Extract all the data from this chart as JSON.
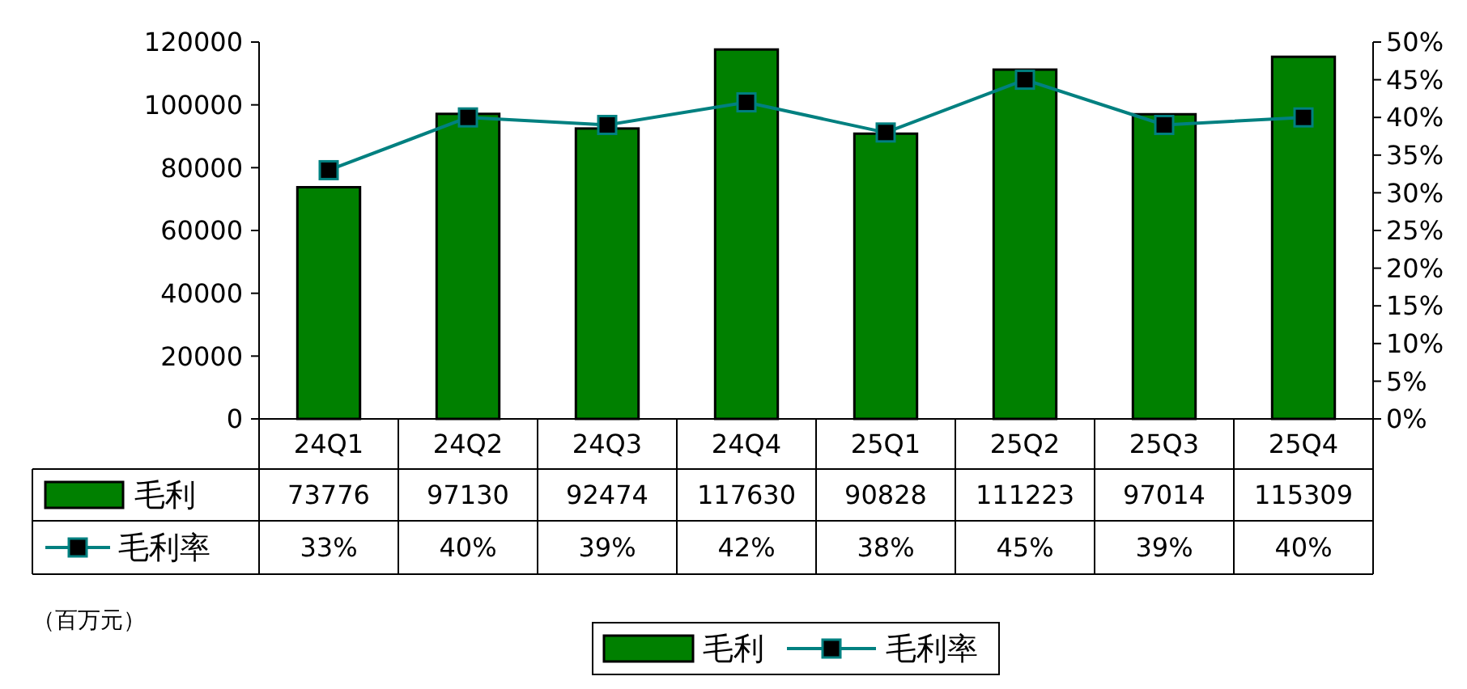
{
  "chart_data": {
    "type": "bar",
    "categories": [
      "24Q1",
      "24Q2",
      "24Q3",
      "24Q4",
      "25Q1",
      "25Q2",
      "25Q3",
      "25Q4"
    ],
    "series": [
      {
        "name": "毛利",
        "color": "#008000",
        "values": [
          73776,
          97130,
          92474,
          117630,
          90828,
          111223,
          97014,
          115309
        ]
      },
      {
        "name": "毛利率",
        "type": "line",
        "axis": "y2",
        "color": "#008080",
        "values": [
          33,
          40,
          39,
          42,
          38,
          45,
          39,
          40
        ]
      }
    ],
    "ylim": [
      0,
      120000
    ],
    "yticks": [
      0,
      20000,
      40000,
      60000,
      80000,
      100000,
      120000
    ],
    "y2lim": [
      0,
      50
    ],
    "y2ticks": [
      {
        "value": 0,
        "label": "0%"
      },
      {
        "value": 5,
        "label": "5%"
      },
      {
        "value": 10,
        "label": "10%"
      },
      {
        "value": 15,
        "label": "15%"
      },
      {
        "value": 20,
        "label": "20%"
      },
      {
        "value": 25,
        "label": "25%"
      },
      {
        "value": 30,
        "label": "30%"
      },
      {
        "value": 35,
        "label": "35%"
      },
      {
        "value": 40,
        "label": "40%"
      },
      {
        "value": 45,
        "label": "45%"
      },
      {
        "value": 50,
        "label": "50%"
      }
    ],
    "value_labels": [
      [
        "73776",
        "97130",
        "92474",
        "117630",
        "90828",
        "111223",
        "97014",
        "115309"
      ],
      [
        "33%",
        "40%",
        "39%",
        "42%",
        "38%",
        "45%",
        "39%",
        "40%"
      ]
    ],
    "marker": "square",
    "legend": "bottom",
    "annotations": [
      "（百万元）"
    ]
  }
}
